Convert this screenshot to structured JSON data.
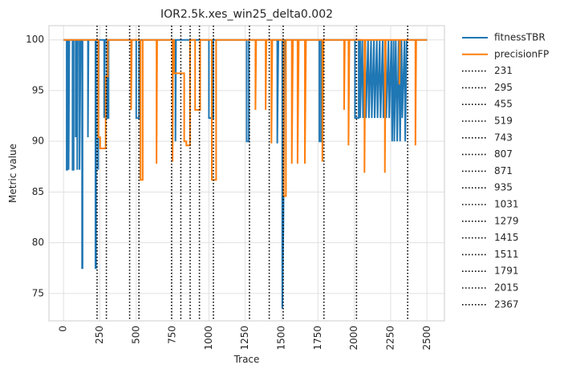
{
  "chart_data": {
    "type": "line",
    "title": "IOR2.5k.xes_win25_delta0.002",
    "xlabel": "Trace",
    "ylabel": "Metric value",
    "xlim": [
      -100,
      2620
    ],
    "ylim": [
      72.3,
      101.4
    ],
    "xticks": [
      0,
      250,
      500,
      750,
      1000,
      1250,
      1500,
      1750,
      2000,
      2250,
      2500
    ],
    "xtick_labels": [
      "0",
      "250",
      "500",
      "750",
      "1000",
      "1250",
      "1500",
      "1750",
      "2000",
      "2250",
      "2500"
    ],
    "yticks": [
      75,
      80,
      85,
      90,
      95,
      100
    ],
    "ytick_labels": [
      "75",
      "80",
      "85",
      "90",
      "95",
      "100"
    ],
    "grid": true,
    "legend_position": "outside-right",
    "series": [
      {
        "name": "fitnessTBR",
        "color": "#1f77b4",
        "points": [
          [
            0,
            100
          ],
          [
            22,
            100
          ],
          [
            22,
            87.2
          ],
          [
            26,
            87.2
          ],
          [
            26,
            100
          ],
          [
            35,
            100
          ],
          [
            35,
            87.2
          ],
          [
            40,
            100
          ],
          [
            62,
            100
          ],
          [
            62,
            87.2
          ],
          [
            70,
            87.2
          ],
          [
            70,
            100
          ],
          [
            84,
            100
          ],
          [
            84,
            90.4
          ],
          [
            90,
            100
          ],
          [
            95,
            100
          ],
          [
            95,
            87.2
          ],
          [
            98,
            100
          ],
          [
            110,
            100
          ],
          [
            110,
            87.2
          ],
          [
            118,
            100
          ],
          [
            128,
            100
          ],
          [
            128,
            77.5
          ],
          [
            131,
            77.5
          ],
          [
            131,
            100
          ],
          [
            168,
            100
          ],
          [
            168,
            90.4
          ],
          [
            172,
            100
          ],
          [
            220,
            100
          ],
          [
            220,
            77.5
          ],
          [
            224,
            77.5
          ],
          [
            224,
            100
          ],
          [
            238,
            100
          ],
          [
            238,
            87.2
          ],
          [
            242,
            100
          ],
          [
            280,
            100
          ],
          [
            280,
            92.3
          ],
          [
            285,
            100
          ],
          [
            300,
            100
          ],
          [
            300,
            92.3
          ],
          [
            310,
            92.3
          ],
          [
            310,
            100
          ],
          [
            500,
            100
          ],
          [
            500,
            92.3
          ],
          [
            520,
            92.3
          ],
          [
            520,
            100
          ],
          [
            770,
            100
          ],
          [
            770,
            90
          ],
          [
            774,
            100
          ],
          [
            1000,
            100
          ],
          [
            1000,
            92.3
          ],
          [
            1030,
            92.3
          ],
          [
            1030,
            100
          ],
          [
            1260,
            100
          ],
          [
            1260,
            90
          ],
          [
            1275,
            90
          ],
          [
            1275,
            100
          ],
          [
            1470,
            100
          ],
          [
            1470,
            89.8
          ],
          [
            1478,
            100
          ],
          [
            1505,
            100
          ],
          [
            1505,
            73.5
          ],
          [
            1512,
            81.5
          ],
          [
            1520,
            100
          ],
          [
            1760,
            100
          ],
          [
            1760,
            90
          ],
          [
            1772,
            90
          ],
          [
            1772,
            100
          ],
          [
            2005,
            100
          ],
          [
            2005,
            92.3
          ],
          [
            2030,
            92.3
          ],
          [
            2030,
            100
          ],
          [
            2040,
            100
          ],
          [
            2040,
            92.3
          ],
          [
            2055,
            100
          ],
          [
            2060,
            92.3
          ],
          [
            2075,
            100
          ],
          [
            2080,
            92.3
          ],
          [
            2095,
            100
          ],
          [
            2100,
            92.3
          ],
          [
            2115,
            100
          ],
          [
            2120,
            92.3
          ],
          [
            2135,
            100
          ],
          [
            2140,
            92.3
          ],
          [
            2155,
            100
          ],
          [
            2160,
            92.3
          ],
          [
            2175,
            100
          ],
          [
            2180,
            92.3
          ],
          [
            2195,
            100
          ],
          [
            2200,
            92.3
          ],
          [
            2215,
            100
          ],
          [
            2220,
            92.3
          ],
          [
            2235,
            100
          ],
          [
            2240,
            92.3
          ],
          [
            2255,
            100
          ],
          [
            2260,
            90
          ],
          [
            2270,
            100
          ],
          [
            2275,
            90
          ],
          [
            2285,
            100
          ],
          [
            2295,
            90
          ],
          [
            2305,
            100
          ],
          [
            2315,
            90
          ],
          [
            2325,
            100
          ],
          [
            2330,
            92.3
          ],
          [
            2345,
            100
          ],
          [
            2350,
            90
          ],
          [
            2360,
            100
          ],
          [
            2368,
            100
          ],
          [
            2500,
            100
          ]
        ]
      },
      {
        "name": "precisionFP",
        "color": "#ff7f0e",
        "points": [
          [
            0,
            100
          ],
          [
            240,
            100
          ],
          [
            240,
            90.4
          ],
          [
            252,
            90.4
          ],
          [
            252,
            89.3
          ],
          [
            290,
            89.3
          ],
          [
            290,
            96.4
          ],
          [
            305,
            96.4
          ],
          [
            305,
            100
          ],
          [
            465,
            100
          ],
          [
            465,
            93.1
          ],
          [
            470,
            100
          ],
          [
            530,
            100
          ],
          [
            530,
            86.2
          ],
          [
            545,
            86.2
          ],
          [
            545,
            100
          ],
          [
            640,
            100
          ],
          [
            640,
            87.8
          ],
          [
            644,
            100
          ],
          [
            750,
            100
          ],
          [
            750,
            88
          ],
          [
            754,
            100
          ],
          [
            760,
            100
          ],
          [
            760,
            96.7
          ],
          [
            830,
            96.7
          ],
          [
            830,
            90
          ],
          [
            845,
            90
          ],
          [
            845,
            89.6
          ],
          [
            870,
            89.6
          ],
          [
            870,
            100
          ],
          [
            905,
            100
          ],
          [
            905,
            93.1
          ],
          [
            940,
            93.1
          ],
          [
            940,
            100
          ],
          [
            1020,
            100
          ],
          [
            1020,
            86.2
          ],
          [
            1050,
            86.2
          ],
          [
            1050,
            100
          ],
          [
            1320,
            100
          ],
          [
            1320,
            93.1
          ],
          [
            1325,
            100
          ],
          [
            1390,
            100
          ],
          [
            1390,
            93.1
          ],
          [
            1395,
            100
          ],
          [
            1430,
            100
          ],
          [
            1430,
            89.8
          ],
          [
            1436,
            100
          ],
          [
            1515,
            100
          ],
          [
            1515,
            84.6
          ],
          [
            1530,
            84.6
          ],
          [
            1530,
            100
          ],
          [
            1570,
            100
          ],
          [
            1570,
            87.8
          ],
          [
            1578,
            100
          ],
          [
            1610,
            100
          ],
          [
            1610,
            87.8
          ],
          [
            1618,
            100
          ],
          [
            1660,
            100
          ],
          [
            1660,
            87.8
          ],
          [
            1668,
            100
          ],
          [
            1780,
            100
          ],
          [
            1780,
            88
          ],
          [
            1788,
            100
          ],
          [
            1930,
            100
          ],
          [
            1930,
            93.1
          ],
          [
            1935,
            100
          ],
          [
            1960,
            100
          ],
          [
            1960,
            89.6
          ],
          [
            1966,
            100
          ],
          [
            2070,
            100
          ],
          [
            2070,
            86.9
          ],
          [
            2076,
            100
          ],
          [
            2210,
            100
          ],
          [
            2210,
            86.9
          ],
          [
            2216,
            100
          ],
          [
            2310,
            100
          ],
          [
            2310,
            95.6
          ],
          [
            2316,
            100
          ],
          [
            2420,
            100
          ],
          [
            2420,
            89.6
          ],
          [
            2426,
            100
          ],
          [
            2500,
            100
          ]
        ]
      }
    ],
    "vlines": {
      "style": "dotted",
      "color": "#000000",
      "positions": [
        231,
        295,
        455,
        519,
        743,
        807,
        871,
        935,
        1031,
        1279,
        1415,
        1511,
        1791,
        2015,
        2367
      ],
      "labels": [
        "231",
        "295",
        "455",
        "519",
        "743",
        "807",
        "871",
        "935",
        "1031",
        "1279",
        "1415",
        "1511",
        "1791",
        "2015",
        "2367"
      ]
    }
  }
}
